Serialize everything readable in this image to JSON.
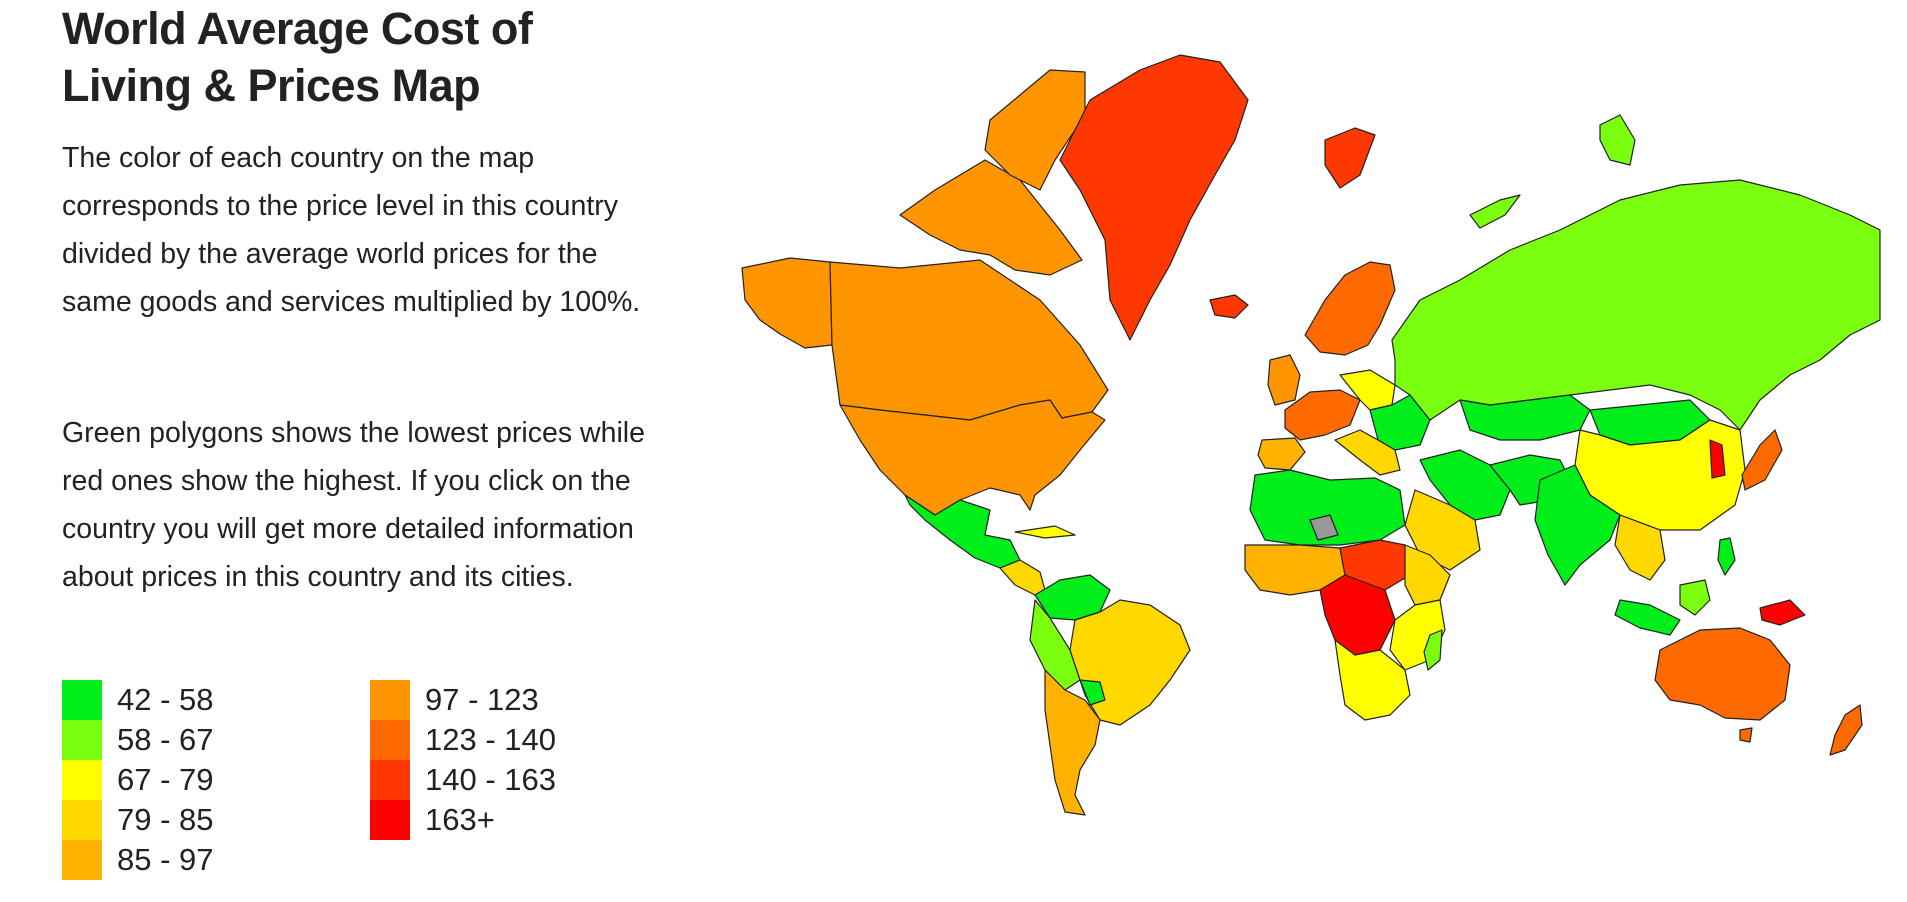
{
  "page": {
    "title_line1": "World Average Cost of",
    "title_line2": "Living & Prices Map",
    "paragraph1": "The color of each country on the map corresponds to the price level in this country divided by the average world prices for the same goods and services multiplied by 100%.",
    "paragraph2": "Green polygons shows the lowest prices while red ones show the highest. If you click on the country you will get more detailed information about prices in this country and its cities."
  },
  "legend": [
    {
      "label": "42 - 58",
      "color": "#00ee1a"
    },
    {
      "label": "58 - 67",
      "color": "#7aff10"
    },
    {
      "label": "67 - 79",
      "color": "#ffff00"
    },
    {
      "label": "79 - 85",
      "color": "#ffd800"
    },
    {
      "label": "85 - 97",
      "color": "#ffb300"
    },
    {
      "label": "97 - 123",
      "color": "#ff9500"
    },
    {
      "label": "123 - 140",
      "color": "#ff6a00"
    },
    {
      "label": "140 - 163",
      "color": "#ff3700"
    },
    {
      "label": "163+",
      "color": "#ff0000"
    }
  ],
  "no_data_color": "#999999"
}
